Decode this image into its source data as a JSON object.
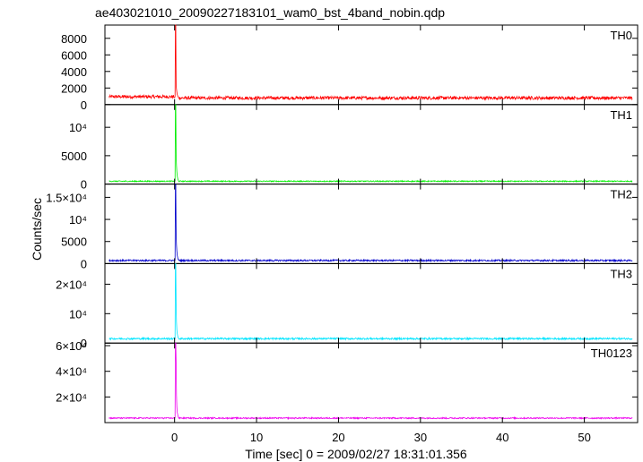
{
  "chart_data": {
    "type": "line",
    "title": "ae403021010_20090227183101_wam0_bst_4band_nobin.qdp",
    "xlabel": "Time [sec] 0 = 2009/02/27 18:31:01.356",
    "ylabel": "Counts/sec",
    "xlim": [
      -8.5,
      56.5
    ],
    "x_ticks": [
      "0",
      "10",
      "20",
      "30",
      "40",
      "50"
    ],
    "x_tick_values": [
      0,
      10,
      20,
      30,
      40,
      50
    ],
    "grid": false,
    "legend": "none",
    "panels": [
      {
        "name": "TH0",
        "color": "#ff0000",
        "ylim": [
          0,
          9600
        ],
        "ticks": [
          0,
          2000,
          4000,
          6000,
          8000
        ],
        "tick_labels": [
          "0",
          "2000",
          "4000",
          "6000",
          "8000"
        ],
        "baseline": 800,
        "noise": 200,
        "pre_level": 950,
        "peak": 9700,
        "spike_profile": [
          0.18,
          0.12,
          0.08,
          0.05,
          0.03,
          0.02,
          0.01
        ]
      },
      {
        "name": "TH1",
        "color": "#00ee00",
        "ylim": [
          0,
          14000
        ],
        "ticks": [
          0,
          5000,
          10000
        ],
        "tick_labels": [
          "0",
          "5000",
          "10⁴"
        ],
        "baseline": 500,
        "noise": 100,
        "pre_level": 500,
        "peak": 14500,
        "spike_profile": [
          0.33,
          0.2,
          0.12,
          0.07,
          0.04,
          0.02,
          0.01
        ]
      },
      {
        "name": "TH2",
        "color": "#0000cc",
        "ylim": [
          0,
          18000
        ],
        "ticks": [
          0,
          5000,
          10000,
          15000
        ],
        "tick_labels": [
          "0",
          "5000",
          "10⁴",
          "1.5×10⁴"
        ],
        "baseline": 700,
        "noise": 180,
        "pre_level": 700,
        "peak": 18500,
        "spike_profile": [
          0.35,
          0.2,
          0.12,
          0.07,
          0.04,
          0.02,
          0.01
        ]
      },
      {
        "name": "TH3",
        "color": "#00e5ff",
        "ylim": [
          0,
          27000
        ],
        "ticks": [
          0,
          10000,
          20000
        ],
        "tick_labels": [
          "0",
          "10⁴",
          "2×10⁴"
        ],
        "baseline": 1500,
        "noise": 300,
        "pre_level": 1500,
        "peak": 27500,
        "spike_profile": [
          0.45,
          0.22,
          0.12,
          0.07,
          0.04,
          0.02,
          0.01
        ]
      },
      {
        "name": "TH0123",
        "color": "#ee00ee",
        "ylim": [
          0,
          62000
        ],
        "ticks": [
          20000,
          40000,
          60000
        ],
        "tick_labels": [
          "2×10⁴",
          "4×10⁴",
          "6×10⁴"
        ],
        "baseline": 3500,
        "noise": 500,
        "pre_level": 3500,
        "peak": 63000,
        "spike_profile": [
          0.73,
          0.3,
          0.15,
          0.08,
          0.05,
          0.03,
          0.015
        ]
      }
    ]
  }
}
